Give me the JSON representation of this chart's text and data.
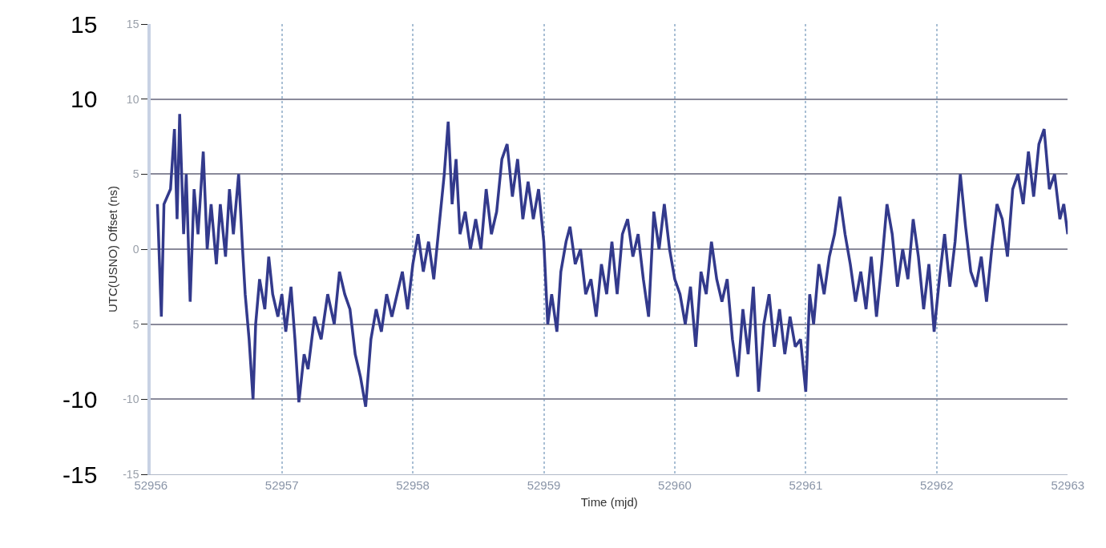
{
  "chart_data": {
    "type": "line",
    "xlabel": "Time (mjd)",
    "ylabel": "UTC(USNO) Offset (ns)",
    "x": [
      52956.05,
      52956.08,
      52956.1,
      52956.15,
      52956.18,
      52956.2,
      52956.22,
      52956.25,
      52956.27,
      52956.3,
      52956.33,
      52956.36,
      52956.4,
      52956.43,
      52956.46,
      52956.5,
      52956.53,
      52956.57,
      52956.6,
      52956.63,
      52956.67,
      52956.7,
      52956.72,
      52956.75,
      52956.78,
      52956.8,
      52956.83,
      52956.87,
      52956.9,
      52956.93,
      52956.97,
      52957.0,
      52957.03,
      52957.07,
      52957.1,
      52957.13,
      52957.17,
      52957.2,
      52957.25,
      52957.3,
      52957.35,
      52957.4,
      52957.44,
      52957.48,
      52957.52,
      52957.56,
      52957.6,
      52957.64,
      52957.68,
      52957.72,
      52957.76,
      52957.8,
      52957.84,
      52957.88,
      52957.92,
      52957.96,
      52958.0,
      52958.04,
      52958.08,
      52958.12,
      52958.16,
      52958.2,
      52958.24,
      52958.27,
      52958.3,
      52958.33,
      52958.36,
      52958.4,
      52958.44,
      52958.48,
      52958.52,
      52958.56,
      52958.6,
      52958.64,
      52958.68,
      52958.72,
      52958.76,
      52958.8,
      52958.84,
      52958.88,
      52958.92,
      52958.96,
      52959.0,
      52959.03,
      52959.06,
      52959.1,
      52959.13,
      52959.17,
      52959.2,
      52959.24,
      52959.28,
      52959.32,
      52959.36,
      52959.4,
      52959.44,
      52959.48,
      52959.52,
      52959.56,
      52959.6,
      52959.64,
      52959.68,
      52959.72,
      52959.76,
      52959.8,
      52959.84,
      52959.88,
      52959.92,
      52959.96,
      52960.0,
      52960.04,
      52960.08,
      52960.12,
      52960.16,
      52960.2,
      52960.24,
      52960.28,
      52960.32,
      52960.36,
      52960.4,
      52960.44,
      52960.48,
      52960.52,
      52960.56,
      52960.6,
      52960.64,
      52960.68,
      52960.72,
      52960.76,
      52960.8,
      52960.84,
      52960.88,
      52960.92,
      52960.96,
      52961.0,
      52961.03,
      52961.06,
      52961.1,
      52961.14,
      52961.18,
      52961.22,
      52961.26,
      52961.3,
      52961.34,
      52961.38,
      52961.42,
      52961.46,
      52961.5,
      52961.54,
      52961.58,
      52961.62,
      52961.66,
      52961.7,
      52961.74,
      52961.78,
      52961.82,
      52961.86,
      52961.9,
      52961.94,
      52961.98,
      52962.02,
      52962.06,
      52962.1,
      52962.14,
      52962.18,
      52962.22,
      52962.26,
      52962.3,
      52962.34,
      52962.38,
      52962.42,
      52962.46,
      52962.5,
      52962.54,
      52962.58,
      52962.62,
      52962.66,
      52962.7,
      52962.74,
      52962.78,
      52962.82,
      52962.86,
      52962.9,
      52962.94,
      52962.97,
      52963.0
    ],
    "series": [
      {
        "color": "#333a8c",
        "values": [
          3,
          -4.5,
          3,
          4,
          8,
          2,
          9,
          1,
          5,
          -3.5,
          4,
          1,
          6.5,
          0,
          3,
          -1,
          3,
          -0.5,
          4,
          1,
          5,
          0,
          -3,
          -6,
          -10,
          -5,
          -2,
          -4,
          -0.5,
          -3,
          -4.5,
          -3,
          -5.5,
          -2.5,
          -6,
          -10.2,
          -7,
          -8,
          -4.5,
          -6,
          -3,
          -5,
          -1.5,
          -3,
          -4,
          -7,
          -8.5,
          -10.5,
          -6,
          -4,
          -5.5,
          -3,
          -4.5,
          -3,
          -1.5,
          -4,
          -1,
          1,
          -1.5,
          0.5,
          -2,
          1.5,
          5,
          8.5,
          3,
          6,
          1,
          2.5,
          0,
          2,
          0,
          4,
          1,
          2.5,
          6,
          7,
          3.5,
          6,
          2,
          4.5,
          2,
          4,
          0.5,
          -5,
          -3,
          -5.5,
          -1.5,
          0.5,
          1.5,
          -1,
          0,
          -3,
          -2,
          -4.5,
          -1,
          -3,
          0.5,
          -3,
          1,
          2,
          -0.5,
          1,
          -2,
          -4.5,
          2.5,
          0,
          3,
          0,
          -2,
          -3,
          -5,
          -2.5,
          -6.5,
          -1.5,
          -3,
          0.5,
          -2,
          -3.5,
          -2,
          -6,
          -8.5,
          -4,
          -7,
          -2.5,
          -9.5,
          -5,
          -3,
          -6.5,
          -4,
          -7,
          -4.5,
          -6.5,
          -6,
          -9.5,
          -3,
          -5,
          -1,
          -3,
          -0.5,
          1,
          3.5,
          1,
          -1,
          -3.5,
          -1.5,
          -4,
          -0.5,
          -4.5,
          -1,
          3,
          1,
          -2.5,
          0,
          -2,
          2,
          -0.5,
          -4,
          -1,
          -5.5,
          -2,
          1,
          -2.5,
          0.5,
          5,
          1.5,
          -1.5,
          -2.5,
          -0.5,
          -3.5,
          0,
          3,
          2,
          -0.5,
          4,
          5,
          3,
          6.5,
          3.5,
          7,
          8,
          4,
          5,
          2,
          3,
          1
        ]
      }
    ],
    "xlim": [
      52956,
      52963
    ],
    "xticks": [
      52956,
      52957,
      52958,
      52959,
      52960,
      52961,
      52962,
      52963
    ],
    "ylim": [
      -15,
      15
    ],
    "yticks": [
      15,
      10,
      5,
      0,
      {
        "value": -5,
        "label": "5"
      },
      -10,
      -15
    ],
    "y2lim": [
      -15,
      15
    ],
    "y2ticks": [
      15,
      10,
      -10,
      -15
    ],
    "grid": true,
    "marker": "none",
    "line_style": "solid"
  }
}
